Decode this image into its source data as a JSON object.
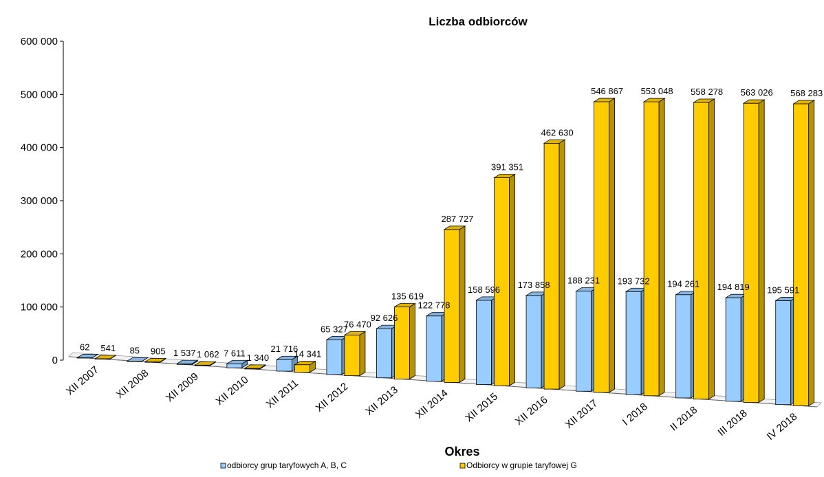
{
  "chart_data": {
    "type": "bar",
    "title": "Liczba odbiorców",
    "xlabel": "Okres",
    "ylabel": "",
    "ylim": [
      0,
      600000
    ],
    "y_ticks": [
      "0",
      "100 000",
      "200 000",
      "300 000",
      "400 000",
      "500 000",
      "600 000"
    ],
    "categories": [
      "XII 2007",
      "XII 2008",
      "XII 2009",
      "XII 2010",
      "XII 2011",
      "XII 2012",
      "XII 2013",
      "XII 2014",
      "XII 2015",
      "XII 2016",
      "XII 2017",
      "I 2018",
      "II 2018",
      "III 2018",
      "IV 2018"
    ],
    "series": [
      {
        "name": "odbiorcy grup taryfowych A, B, C",
        "color": "#99CCFF",
        "values": [
          62,
          85,
          1537,
          7611,
          21716,
          65327,
          92626,
          122778,
          158596,
          173858,
          188231,
          193732,
          194261,
          194819,
          195591
        ],
        "labels": [
          "62",
          "85",
          "1 537",
          "7 611",
          "21 716",
          "65 327",
          "92 626",
          "122 778",
          "158 596",
          "173 858",
          "188 231",
          "193 732",
          "194 261",
          "194 819",
          "195 591"
        ]
      },
      {
        "name": "Odbiorcy w grupie taryfowej G",
        "color": "#FFCC00",
        "values": [
          541,
          905,
          1062,
          1340,
          14341,
          76470,
          135619,
          287727,
          391351,
          462630,
          546867,
          553048,
          558278,
          563026,
          568283
        ],
        "labels": [
          "541",
          "905",
          "1 062",
          "1 340",
          "14 341",
          "76 470",
          "135 619",
          "287 727",
          "391 351",
          "462 630",
          "546 867",
          "553 048",
          "558 278",
          "563 026",
          "568 283"
        ]
      }
    ],
    "legend_position": "bottom",
    "grid": false,
    "style": "3d-clustered"
  }
}
